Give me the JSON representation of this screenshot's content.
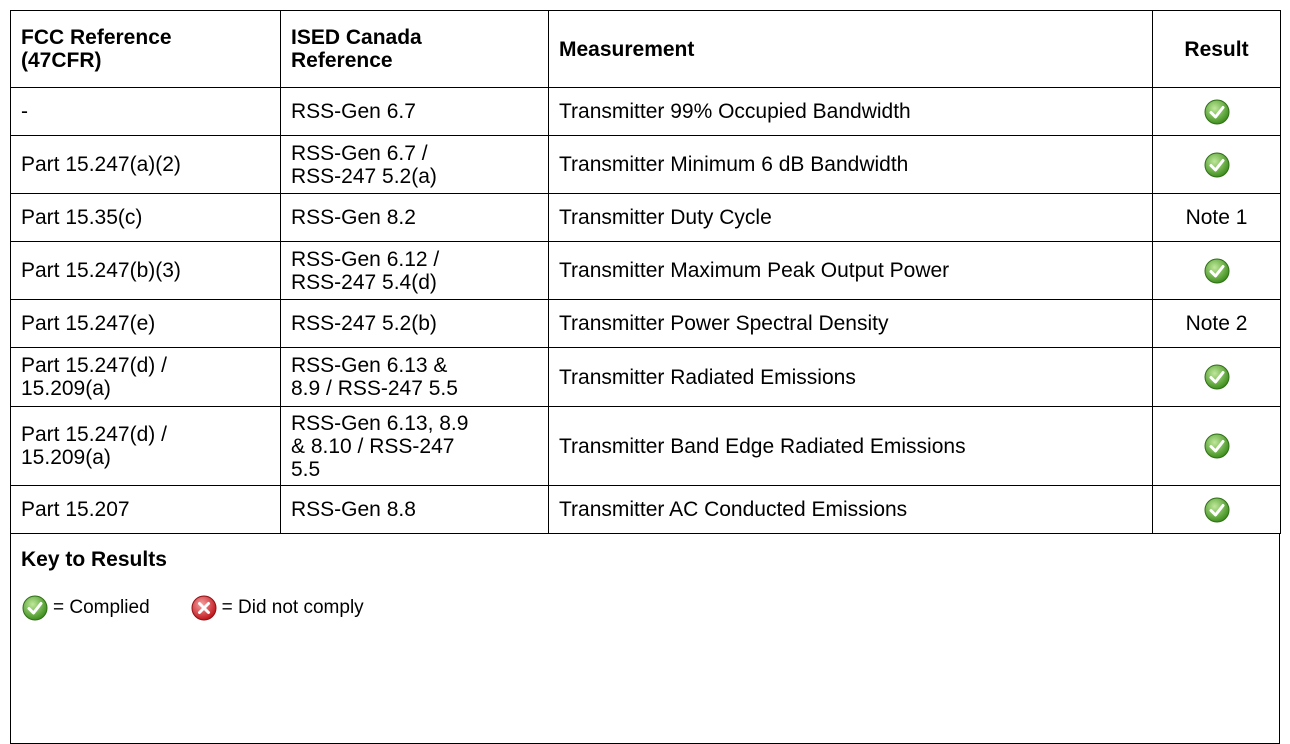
{
  "table": {
    "headers": [
      "FCC Reference\n(47CFR)",
      "ISED Canada\nReference",
      "Measurement",
      "Result"
    ],
    "rows": [
      {
        "fcc": "-",
        "ised": "RSS-Gen 6.7",
        "measurement": "Transmitter 99% Occupied Bandwidth"
      },
      {
        "fcc": "Part 15.247(a)(2)",
        "ised": "RSS-Gen 6.7 /\nRSS-247 5.2(a)",
        "measurement": "Transmitter Minimum 6 dB Bandwidth"
      },
      {
        "fcc": "Part 15.35(c)",
        "ised": "RSS-Gen 8.2",
        "measurement": "Transmitter Duty Cycle",
        "note": "Note 1"
      },
      {
        "fcc": "Part 15.247(b)(3)",
        "ised": "RSS-Gen 6.12 /\nRSS-247 5.4(d)",
        "measurement": "Transmitter Maximum Peak Output Power"
      },
      {
        "fcc": "Part 15.247(e)",
        "ised": "RSS-247 5.2(b)",
        "measurement": "Transmitter Power Spectral Density",
        "note": "Note 2"
      },
      {
        "fcc": "Part 15.247(d) /\n15.209(a)",
        "ised": "RSS-Gen 6.13 &\n8.9 / RSS-247 5.5",
        "measurement": "Transmitter Radiated Emissions"
      },
      {
        "fcc": "Part 15.247(d) /\n15.209(a)",
        "ised": "RSS-Gen 6.13, 8.9\n& 8.10 / RSS-247\n5.5",
        "measurement": "Transmitter Band Edge Radiated Emissions"
      },
      {
        "fcc": "Part 15.207",
        "ised": "RSS-Gen 8.8",
        "measurement": "Transmitter AC Conducted Emissions"
      }
    ]
  },
  "key": {
    "title": "Key to Results",
    "complied": "= Complied",
    "not_complied": "= Did not comply"
  }
}
